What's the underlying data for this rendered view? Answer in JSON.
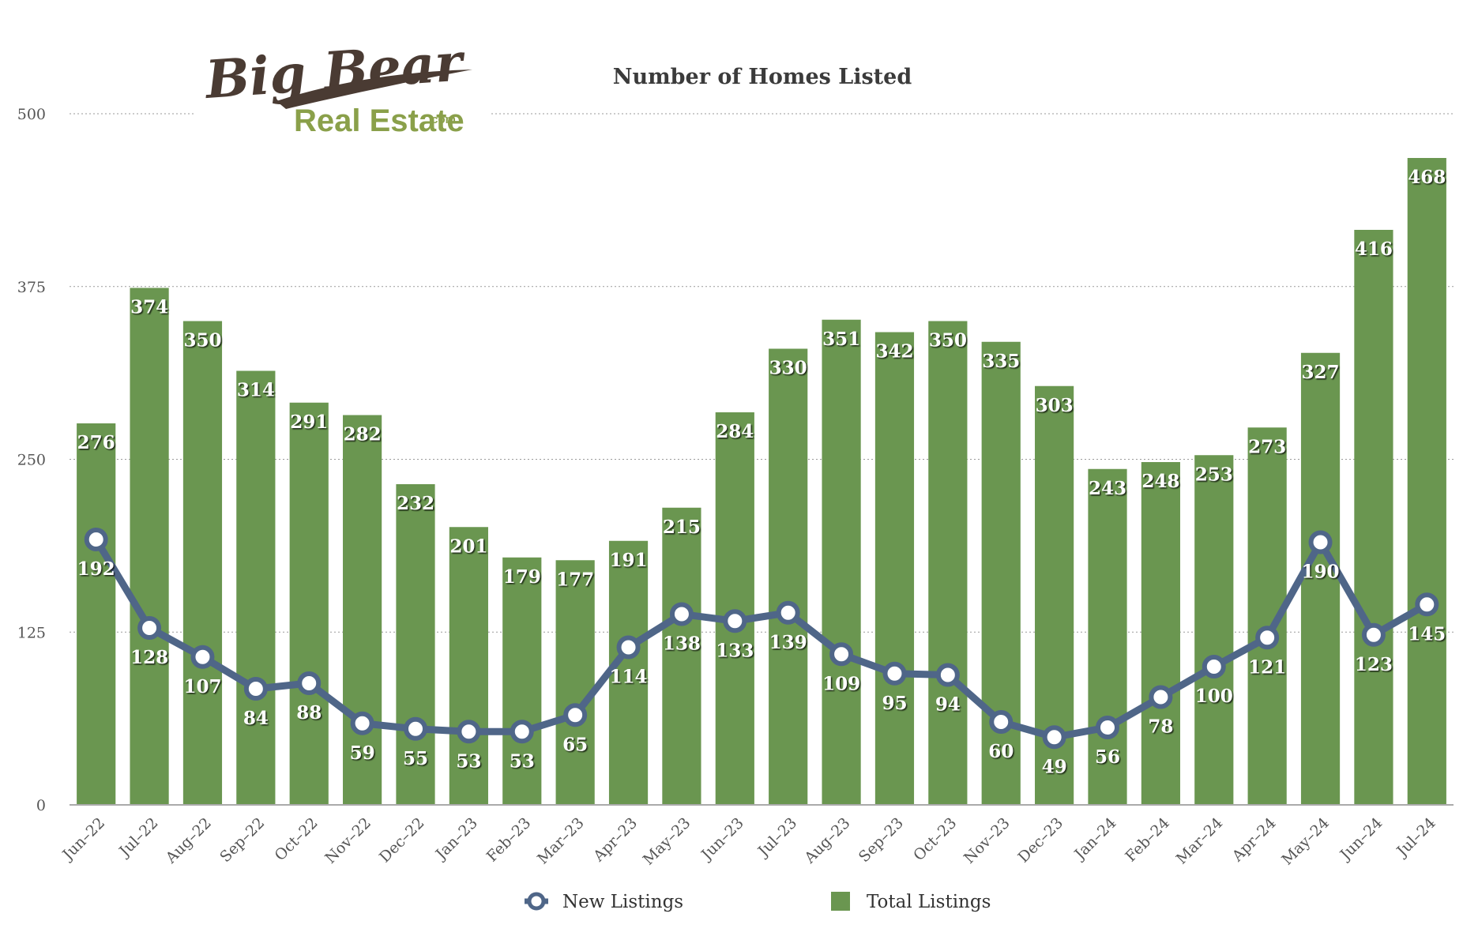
{
  "logo": {
    "script_text": "Big Bear",
    "sub_text": "Real Estate",
    "domain_text": ".com",
    "script_color": "#4a3b33",
    "sub_color": "#8aa04a"
  },
  "chart_data": {
    "type": "bar",
    "title": "Number of Homes Listed",
    "xlabel": "",
    "ylabel": "",
    "ylim": [
      0,
      500
    ],
    "yticks": [
      0,
      125,
      250,
      375,
      500
    ],
    "grid": true,
    "legend_position": "bottom",
    "categories": [
      "Jun–22",
      "Jul–22",
      "Aug–22",
      "Sep–22",
      "Oct–22",
      "Nov–22",
      "Dec–22",
      "Jan–23",
      "Feb–23",
      "Mar–23",
      "Apr–23",
      "May–23",
      "Jun–23",
      "Jul–23",
      "Aug–23",
      "Sep–23",
      "Oct–23",
      "Nov–23",
      "Dec–23",
      "Jan–24",
      "Feb–24",
      "Mar–24",
      "Apr–24",
      "May–24",
      "Jun–24",
      "Jul–24"
    ],
    "series": [
      {
        "name": "Total Listings",
        "type": "bar",
        "color": "#6a9650",
        "values": [
          276,
          374,
          350,
          314,
          291,
          282,
          232,
          201,
          179,
          177,
          191,
          215,
          284,
          330,
          351,
          342,
          350,
          335,
          303,
          243,
          248,
          253,
          273,
          327,
          416,
          468
        ]
      },
      {
        "name": "New Listings",
        "type": "line",
        "color": "#4f6688",
        "values": [
          192,
          128,
          107,
          84,
          88,
          59,
          55,
          53,
          53,
          65,
          114,
          138,
          133,
          139,
          109,
          95,
          94,
          60,
          49,
          56,
          78,
          100,
          121,
          190,
          123,
          145
        ]
      }
    ]
  }
}
